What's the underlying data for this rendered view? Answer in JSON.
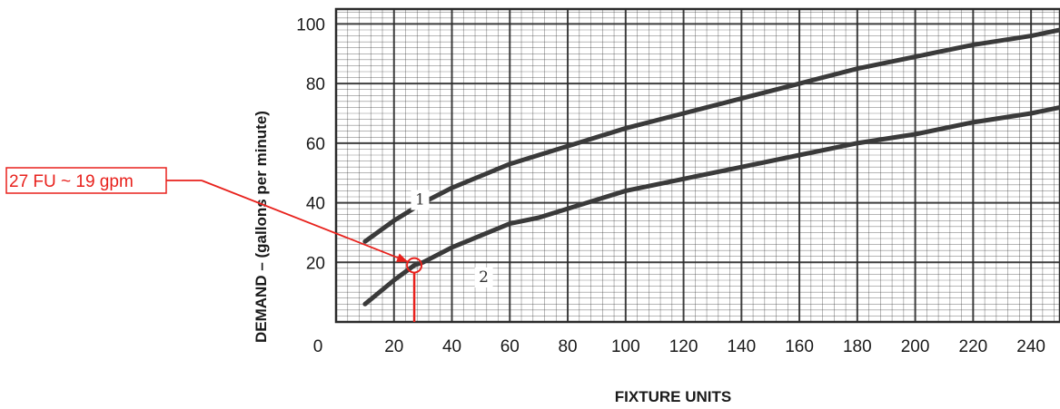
{
  "chart_data": {
    "type": "line",
    "xlabel": "FIXTURE UNITS",
    "ylabel": "DEMAND – (gallons per minute)",
    "xlim": [
      0,
      250
    ],
    "ylim": [
      0,
      105
    ],
    "x_ticks": [
      0,
      20,
      40,
      60,
      80,
      100,
      120,
      140,
      160,
      180,
      200,
      220,
      240
    ],
    "y_ticks": [
      20,
      40,
      60,
      80,
      100
    ],
    "grid": true,
    "series": [
      {
        "name": "1",
        "x": [
          10,
          20,
          30,
          40,
          50,
          60,
          70,
          80,
          100,
          120,
          140,
          160,
          180,
          200,
          220,
          240,
          250
        ],
        "y": [
          27,
          34,
          40,
          45,
          49,
          53,
          56,
          59,
          65,
          70,
          75,
          80,
          85,
          89,
          93,
          96,
          98
        ]
      },
      {
        "name": "2",
        "x": [
          10,
          20,
          27,
          30,
          40,
          50,
          60,
          70,
          80,
          100,
          120,
          140,
          160,
          180,
          200,
          220,
          240,
          250
        ],
        "y": [
          6,
          14,
          19,
          20,
          25,
          29,
          33,
          35,
          38,
          44,
          48,
          52,
          56,
          60,
          63,
          67,
          70,
          72
        ]
      }
    ],
    "annotations": [
      {
        "text": "27 FU ~ 19 gpm",
        "x": 27,
        "y": 19
      }
    ]
  },
  "colors": {
    "grid": "#2a2a2a",
    "curve": "#3a3a3a",
    "callout": "#e8211c"
  }
}
